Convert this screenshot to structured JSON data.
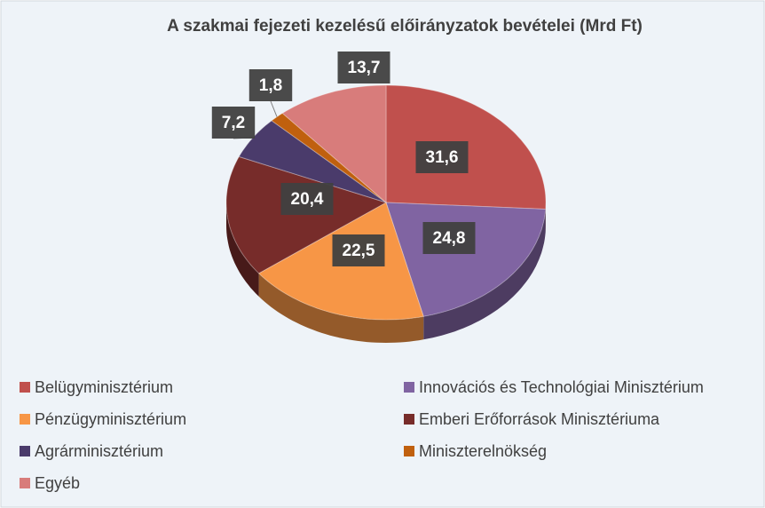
{
  "chart_data": {
    "type": "pie",
    "title": "A szakmai fejezeti kezelésű előirányzatok bevételei (Mrd Ft)",
    "categories": [
      "Belügyminisztérium",
      "Innovációs és Technológiai Minisztérium",
      "Pénzügyminisztérium",
      "Emberi Erőforrások Minisztériuma",
      "Agrárminisztérium",
      "Miniszterelnökség",
      "Egyéb"
    ],
    "values": [
      31.6,
      24.8,
      22.5,
      20.4,
      7.2,
      1.8,
      13.7
    ],
    "value_labels": [
      "31,6",
      "24,8",
      "22,5",
      "20,4",
      "7,2",
      "1,8",
      "13,7"
    ],
    "colors": [
      "#c0504d",
      "#8064a2",
      "#f79646",
      "#772c2a",
      "#4a3b6b",
      "#c0600e",
      "#d87c7b"
    ],
    "legend": "bottom"
  }
}
